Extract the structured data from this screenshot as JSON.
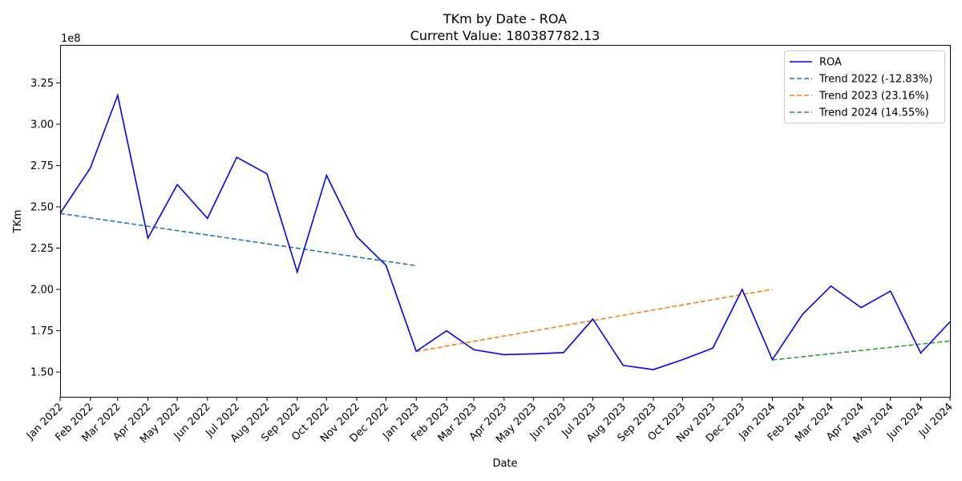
{
  "chart_data": {
    "type": "line",
    "title": "TKm by Date - ROA",
    "subtitle": "Current Value: 180387782.13",
    "xlabel": "Date",
    "ylabel": "TKm",
    "y_multiplier_label": "1e8",
    "ylim": [
      135000000,
      348000000
    ],
    "y_ticks": [
      150000000,
      175000000,
      200000000,
      225000000,
      250000000,
      275000000,
      300000000,
      325000000
    ],
    "y_tick_labels": [
      "1.50",
      "1.75",
      "2.00",
      "2.25",
      "2.50",
      "2.75",
      "3.00",
      "3.25"
    ],
    "x_tick_labels": [
      "Jan 2022",
      "Feb 2022",
      "Mar 2022",
      "Apr 2022",
      "May 2022",
      "Jun 2022",
      "Jul 2022",
      "Aug 2022",
      "Sep 2022",
      "Oct 2022",
      "Nov 2022",
      "Dec 2022",
      "Jan 2023",
      "Feb 2023",
      "Mar 2023",
      "Apr 2023",
      "May 2023",
      "Jun 2023",
      "Jul 2023",
      "Aug 2023",
      "Sep 2023",
      "Oct 2023",
      "Nov 2023",
      "Dec 2023",
      "Jan 2024",
      "Feb 2024",
      "Mar 2024",
      "Apr 2024",
      "May 2024",
      "Jun 2024",
      "Jul 2024"
    ],
    "x_tick_dates": [
      "2022-01-01",
      "2022-02-01",
      "2022-03-01",
      "2022-04-01",
      "2022-05-01",
      "2022-06-01",
      "2022-07-01",
      "2022-08-01",
      "2022-09-01",
      "2022-10-01",
      "2022-11-01",
      "2022-12-01",
      "2023-01-01",
      "2023-02-01",
      "2023-03-01",
      "2023-04-01",
      "2023-05-01",
      "2023-06-01",
      "2023-07-01",
      "2023-08-01",
      "2023-09-01",
      "2023-10-01",
      "2023-11-01",
      "2023-12-01",
      "2024-01-01",
      "2024-02-01",
      "2024-03-01",
      "2024-04-01",
      "2024-05-01",
      "2024-06-01",
      "2024-07-01"
    ],
    "xlim": [
      "2022-01-01",
      "2024-07-01"
    ],
    "legend_position": "top-right",
    "grid": false,
    "series": [
      {
        "name": "ROA",
        "style": "solid",
        "color": "#0000ff",
        "x": [
          "2022-01-01",
          "2022-02-01",
          "2022-03-01",
          "2022-04-01",
          "2022-05-01",
          "2022-06-01",
          "2022-07-01",
          "2022-08-01",
          "2022-09-01",
          "2022-10-01",
          "2022-11-01",
          "2022-12-01",
          "2023-01-01",
          "2023-02-01",
          "2023-03-01",
          "2023-04-01",
          "2023-05-01",
          "2023-06-01",
          "2023-07-01",
          "2023-08-01",
          "2023-09-01",
          "2023-10-01",
          "2023-11-01",
          "2023-12-01",
          "2024-01-01",
          "2024-02-01",
          "2024-03-01",
          "2024-04-01",
          "2024-05-01",
          "2024-06-01",
          "2024-07-01"
        ],
        "y": [
          246000000,
          273500000,
          317500000,
          231000000,
          263500000,
          243000000,
          280000000,
          270000000,
          210500000,
          269000000,
          232000000,
          214500000,
          162500000,
          175000000,
          163500000,
          160500000,
          161000000,
          161800000,
          182000000,
          154000000,
          151500000,
          157500000,
          164500000,
          200000000,
          157500000,
          185000000,
          202000000,
          189000000,
          199000000,
          161500000,
          180387782.13
        ]
      },
      {
        "name": "Trend 2022 (-12.83%)",
        "style": "dashed",
        "color": "#1f77b4",
        "x": [
          "2022-01-01",
          "2023-01-01"
        ],
        "y": [
          246000000,
          214400000
        ]
      },
      {
        "name": "Trend 2023 (23.16%)",
        "style": "dashed",
        "color": "#ff7f0e",
        "x": [
          "2023-01-01",
          "2024-01-01"
        ],
        "y": [
          162500000,
          200100000
        ]
      },
      {
        "name": "Trend 2024 (14.55%)",
        "style": "dashed",
        "color": "#2ca02c",
        "x": [
          "2024-01-01",
          "2024-07-01"
        ],
        "y": [
          157300000,
          168800000
        ]
      }
    ]
  }
}
